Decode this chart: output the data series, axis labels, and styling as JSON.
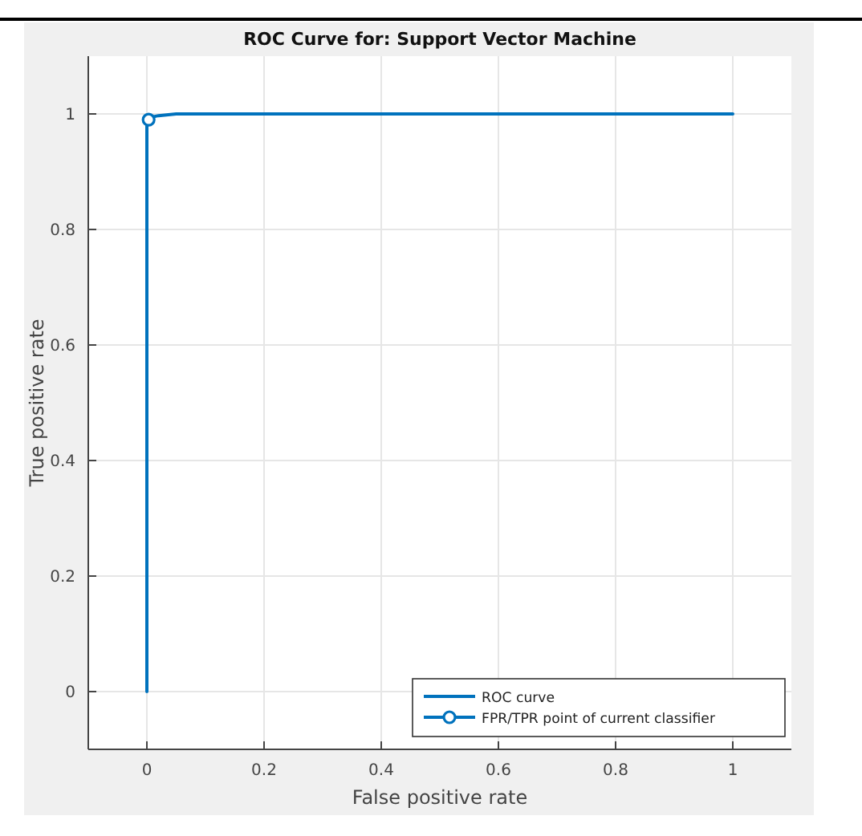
{
  "chart_data": {
    "type": "line",
    "title": "ROC Curve for: Support Vector Machine",
    "xlabel": "False positive rate",
    "ylabel": "True positive rate",
    "xlim": [
      -0.1,
      1.1
    ],
    "ylim": [
      -0.1,
      1.1
    ],
    "xticks": [
      0,
      0.2,
      0.4,
      0.6,
      0.8,
      1
    ],
    "yticks": [
      0,
      0.2,
      0.4,
      0.6,
      0.8,
      1
    ],
    "grid": true,
    "legend": "bottom right",
    "series": [
      {
        "name": "ROC curve",
        "color": "#0072bd",
        "x": [
          0,
          0,
          0.01,
          0.02,
          0.05,
          1
        ],
        "values": [
          0,
          0.99,
          0.995,
          0.997,
          1,
          1
        ],
        "marker": "none",
        "line_style": "solid"
      },
      {
        "name": "FPR/TPR point of current classifier",
        "type": "scatter",
        "color": "#0072bd",
        "x": [
          0.003
        ],
        "values": [
          0.99
        ],
        "marker": "circle"
      }
    ]
  }
}
